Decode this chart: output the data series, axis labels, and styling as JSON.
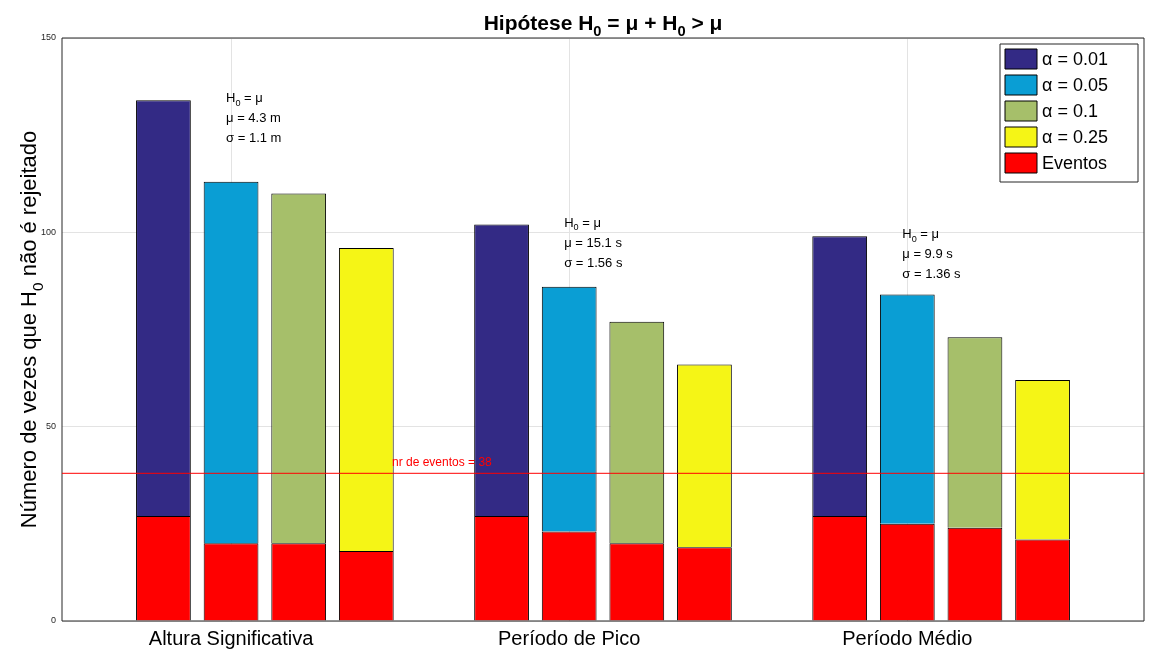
{
  "chart_data": {
    "type": "bar",
    "title": "Hipótese H$_{0}$ = μ + H$_{0}$ > μ",
    "ylabel": "Número de vezes que H$_{0}$ não é rejeitado",
    "categories": [
      null,
      null,
      "Altura Significativa",
      null,
      null,
      null,
      null,
      "Período de Pico",
      null,
      null,
      null,
      null,
      "Período Médio",
      null,
      null,
      null
    ],
    "stacked": true,
    "series": [
      {
        "name": "Eventos",
        "color": "#ff0000",
        "values": [
          null,
          27,
          20,
          20,
          18,
          null,
          27,
          23,
          20,
          19,
          null,
          27,
          25,
          24,
          21,
          null
        ]
      },
      {
        "name": "α = 0.01",
        "color": "#332a85",
        "values": [
          null,
          107,
          null,
          null,
          null,
          null,
          75,
          null,
          null,
          null,
          null,
          72,
          null,
          null,
          null,
          null
        ]
      },
      {
        "name": "α = 0.05",
        "color": "#0a9ed4",
        "values": [
          null,
          null,
          93,
          null,
          null,
          null,
          null,
          63,
          null,
          null,
          null,
          null,
          59,
          null,
          null,
          null
        ]
      },
      {
        "name": "α = 0.1",
        "color": "#a6bf6a",
        "values": [
          null,
          null,
          null,
          90,
          null,
          null,
          null,
          null,
          57,
          null,
          null,
          null,
          null,
          49,
          null,
          null
        ]
      },
      {
        "name": "α = 0.25",
        "color": "#f5f516",
        "values": [
          null,
          null,
          null,
          null,
          78,
          null,
          null,
          null,
          null,
          47,
          null,
          null,
          null,
          null,
          41,
          null
        ]
      }
    ],
    "ylim": [
      0,
      150
    ],
    "yticks": [
      0,
      50,
      100,
      150
    ],
    "grid": true,
    "legend": "top right",
    "ref_lines": [
      {
        "axis": "y",
        "value": 38,
        "label": "nr de eventos = 38",
        "color": "#ff0000"
      }
    ],
    "annotations": [
      "H$_{0}$ = μ\nμ = 4.3 m\nσ = 1.1 m",
      "H$_{0}$ = μ\nμ = 15.1 s\nσ = 1.56 s",
      "H$_{0}$ = μ\nμ = 9.9 s\nσ = 1.36 s"
    ]
  }
}
